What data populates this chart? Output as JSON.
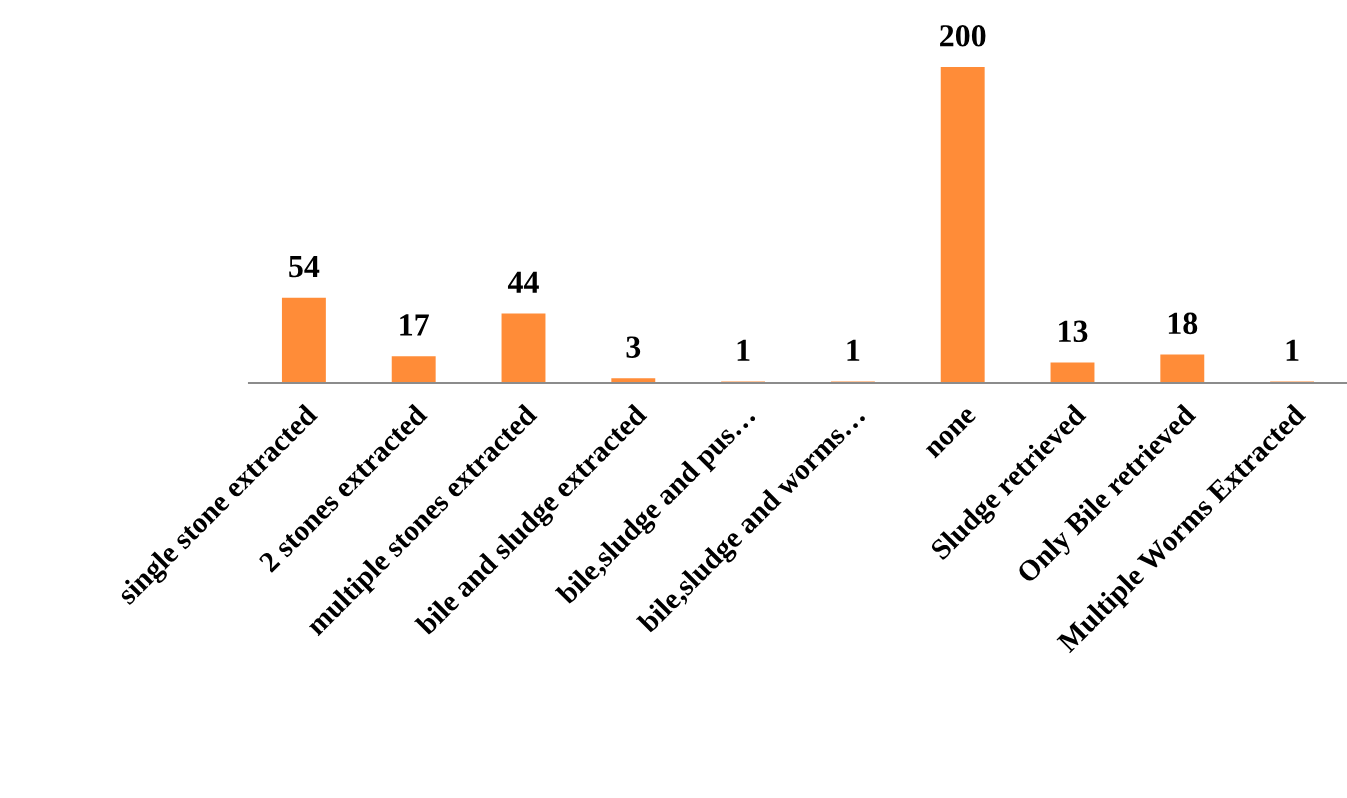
{
  "chart_data": {
    "type": "bar",
    "categories": [
      "single stone extracted",
      "2 stones extracted",
      "multiple stones extracted",
      "bile and sludge extracted",
      "bile,sludge and pus…",
      "bile,sludge and worms…",
      "none",
      "Sludge retrieved",
      "Only Bile retrieved",
      "Multiple Worms Extracted"
    ],
    "values": [
      54,
      17,
      44,
      3,
      1,
      1,
      200,
      13,
      18,
      1
    ],
    "color": "#ff8c38",
    "data_labels": true,
    "grid": false,
    "legend": false
  }
}
